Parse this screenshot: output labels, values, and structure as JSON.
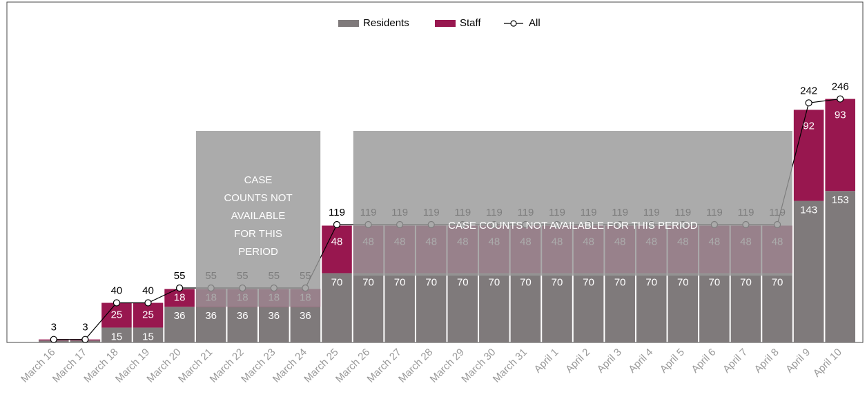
{
  "chart_data": {
    "type": "stacked-bar-line",
    "categories": [
      "March 16",
      "March 17",
      "March 18",
      "March 19",
      "March 20",
      "March 21",
      "March 22",
      "March 23",
      "March 24",
      "March 25",
      "March 26",
      "March 27",
      "March 28",
      "March 29",
      "March 30",
      "March 31",
      "April 1",
      "April 2",
      "April 3",
      "April 4",
      "April 5",
      "April 6",
      "April 7",
      "April 8",
      "April 9",
      "April 10"
    ],
    "series": [
      {
        "name": "Residents",
        "color": "#7f7a7b",
        "values": [
          2,
          2,
          15,
          15,
          36,
          36,
          36,
          36,
          36,
          70,
          70,
          70,
          70,
          70,
          70,
          70,
          70,
          70,
          70,
          70,
          70,
          70,
          70,
          70,
          143,
          153
        ]
      },
      {
        "name": "Staff",
        "color": "#98174f",
        "values": [
          1,
          1,
          25,
          25,
          18,
          18,
          18,
          18,
          18,
          48,
          48,
          48,
          48,
          48,
          48,
          48,
          48,
          48,
          48,
          48,
          48,
          48,
          48,
          48,
          92,
          93
        ]
      },
      {
        "name": "All",
        "color": "#000000",
        "values": [
          3,
          3,
          40,
          40,
          55,
          55,
          55,
          55,
          55,
          119,
          119,
          119,
          119,
          119,
          119,
          119,
          119,
          119,
          119,
          119,
          119,
          119,
          119,
          119,
          242,
          246
        ]
      }
    ],
    "ylim": [
      0,
      300
    ],
    "legend": "top",
    "annotations": [
      "CASE COUNTS NOT AVAILABLE FOR THIS PERIOD",
      "CASE COUNTS NOT AVAILABLE FOR THIS PERIOD"
    ]
  }
}
